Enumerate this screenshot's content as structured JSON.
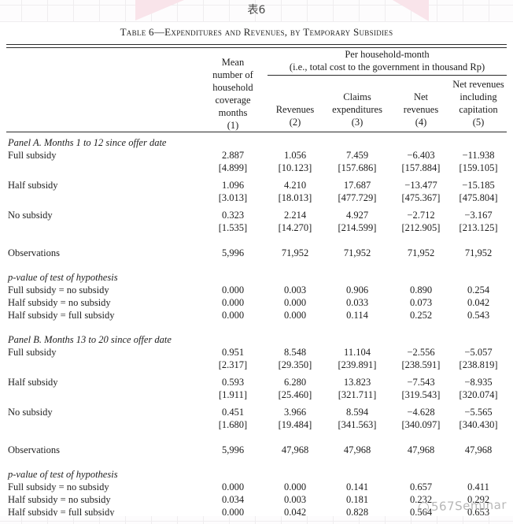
{
  "banner": {
    "caption": "表6"
  },
  "watermark": {
    "text": "567Seminar"
  },
  "table": {
    "title": "Table 6—Expenditures and Revenues, by Temporary Subsidies",
    "header": {
      "col1": "Mean\nnumber of\nhousehold\ncoverage\nmonths\n(1)",
      "span_line1": "Per household-month",
      "span_line2": "(i.e., total cost to the government in thousand Rp)",
      "col2": "Revenues\n(2)",
      "col3": "Claims\nexpenditures\n(3)",
      "col4": "Net\nrevenues\n(4)",
      "col5": "Net revenues\nincluding\ncapitation\n(5)"
    },
    "panels": [
      {
        "heading": "Panel A. Months 1 to 12 since offer date",
        "rows": [
          {
            "label": "Full subsidy",
            "values": [
              "2.887",
              "1.056",
              "7.459",
              "−6.403",
              "−11.938"
            ],
            "se": [
              "[4.899]",
              "[10.123]",
              "[157.686]",
              "[157.884]",
              "[159.105]"
            ]
          },
          {
            "label": "Half subsidy",
            "values": [
              "1.096",
              "4.210",
              "17.687",
              "−13.477",
              "−15.185"
            ],
            "se": [
              "[3.013]",
              "[18.013]",
              "[477.729]",
              "[475.367]",
              "[475.804]"
            ]
          },
          {
            "label": "No subsidy",
            "values": [
              "0.323",
              "2.214",
              "4.927",
              "−2.712",
              "−3.167"
            ],
            "se": [
              "[1.535]",
              "[14.270]",
              "[214.599]",
              "[212.905]",
              "[213.125]"
            ]
          }
        ],
        "observations": {
          "label": "Observations",
          "values": [
            "5,996",
            "71,952",
            "71,952",
            "71,952",
            "71,952"
          ]
        },
        "pvalue_heading": "p-value of test of hypothesis",
        "pvalues": [
          {
            "label": "Full subsidy = no subsidy",
            "values": [
              "0.000",
              "0.003",
              "0.906",
              "0.890",
              "0.254"
            ]
          },
          {
            "label": "Half subsidy = no subsidy",
            "values": [
              "0.000",
              "0.000",
              "0.033",
              "0.073",
              "0.042"
            ]
          },
          {
            "label": "Half subsidy = full subsidy",
            "values": [
              "0.000",
              "0.000",
              "0.114",
              "0.252",
              "0.543"
            ]
          }
        ]
      },
      {
        "heading": "Panel B. Months 13 to 20 since offer date",
        "rows": [
          {
            "label": "Full subsidy",
            "values": [
              "0.951",
              "8.548",
              "11.104",
              "−2.556",
              "−5.057"
            ],
            "se": [
              "[2.317]",
              "[29.350]",
              "[239.891]",
              "[238.591]",
              "[238.819]"
            ]
          },
          {
            "label": "Half subsidy",
            "values": [
              "0.593",
              "6.280",
              "13.823",
              "−7.543",
              "−8.935"
            ],
            "se": [
              "[1.911]",
              "[25.460]",
              "[321.711]",
              "[319.543]",
              "[320.074]"
            ]
          },
          {
            "label": "No subsidy",
            "values": [
              "0.451",
              "3.966",
              "8.594",
              "−4.628",
              "−5.565"
            ],
            "se": [
              "[1.680]",
              "[19.484]",
              "[341.563]",
              "[340.097]",
              "[340.430]"
            ]
          }
        ],
        "observations": {
          "label": "Observations",
          "values": [
            "5,996",
            "47,968",
            "47,968",
            "47,968",
            "47,968"
          ]
        },
        "pvalue_heading": "p-value of test of hypothesis",
        "pvalues": [
          {
            "label": "Full subsidy = no subsidy",
            "values": [
              "0.000",
              "0.000",
              "0.141",
              "0.657",
              "0.411"
            ]
          },
          {
            "label": "Half subsidy = no subsidy",
            "values": [
              "0.034",
              "0.003",
              "0.181",
              "0.232",
              "0.292"
            ]
          },
          {
            "label": "Half subsidy = full subsidy",
            "values": [
              "0.000",
              "0.042",
              "0.828",
              "0.564",
              "0.653"
            ]
          }
        ]
      }
    ]
  }
}
